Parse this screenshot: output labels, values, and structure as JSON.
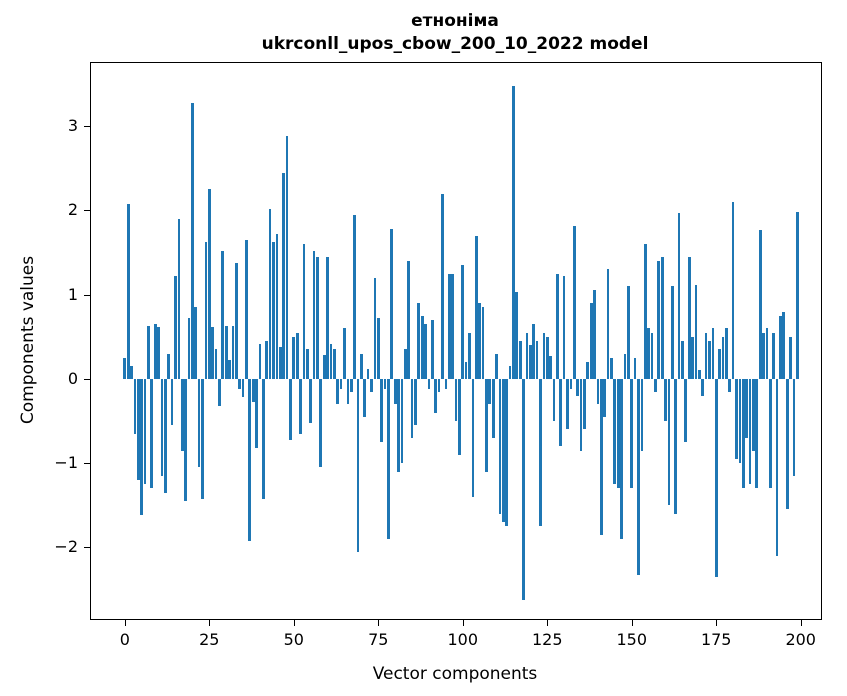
{
  "figure": {
    "title_line1": "етноніма",
    "title_line2": "ukrconll_upos_cbow_200_10_2022 model",
    "xlabel": "Vector components",
    "ylabel": "Components values"
  },
  "chart_data": {
    "type": "bar",
    "title": "етноніма\nukrconll_upos_cbow_200_10_2022 model",
    "xlabel": "Vector components",
    "ylabel": "Components values",
    "bar_color": "#1f77b4",
    "legend": null,
    "grid": false,
    "x_ticks": [
      0,
      25,
      50,
      75,
      100,
      125,
      150,
      175,
      200
    ],
    "y_ticks": [
      -2,
      -1,
      0,
      1,
      2,
      3
    ],
    "xlim": [
      -10,
      206
    ],
    "ylim": [
      -2.85,
      3.75
    ],
    "x_start": 0,
    "values": [
      0.25,
      2.08,
      0.15,
      -0.65,
      -1.2,
      -1.62,
      -1.25,
      0.63,
      -1.3,
      0.65,
      0.62,
      -1.15,
      -1.35,
      0.3,
      -0.55,
      1.22,
      1.9,
      -0.85,
      -1.45,
      0.72,
      3.27,
      0.85,
      -1.05,
      -1.42,
      1.63,
      2.25,
      0.62,
      0.35,
      -0.32,
      1.52,
      0.63,
      0.22,
      0.63,
      1.38,
      -0.12,
      -0.22,
      1.65,
      -1.93,
      -0.28,
      -0.82,
      0.42,
      -1.42,
      0.45,
      2.02,
      1.62,
      1.72,
      0.38,
      2.45,
      2.88,
      -0.72,
      0.5,
      0.55,
      -0.65,
      1.6,
      0.35,
      -0.52,
      1.52,
      1.45,
      -1.05,
      0.28,
      1.45,
      0.42,
      0.35,
      -0.3,
      -0.12,
      0.6,
      -0.3,
      -0.15,
      1.95,
      -2.05,
      0.3,
      -0.45,
      0.12,
      -0.15,
      1.2,
      0.72,
      -0.75,
      -0.12,
      -1.9,
      1.78,
      -0.3,
      -1.1,
      -1.0,
      0.35,
      1.4,
      -0.7,
      -0.55,
      0.9,
      0.75,
      0.65,
      -0.12,
      0.7,
      -0.4,
      -0.15,
      2.2,
      -0.12,
      1.25,
      1.25,
      -0.5,
      -0.9,
      1.35,
      0.2,
      0.55,
      -1.4,
      1.7,
      0.9,
      0.85,
      -1.1,
      -0.3,
      -0.7,
      0.3,
      -1.6,
      -1.7,
      -1.75,
      0.15,
      3.48,
      1.03,
      0.45,
      -2.62,
      0.55,
      0.4,
      0.65,
      0.45,
      -1.75,
      0.55,
      0.5,
      0.27,
      -0.5,
      1.25,
      -0.8,
      1.22,
      -0.6,
      -0.12,
      1.82,
      -0.2,
      -0.85,
      -0.6,
      0.2,
      0.9,
      1.05,
      -0.3,
      -1.85,
      -0.45,
      1.3,
      0.25,
      -1.25,
      -1.3,
      -1.9,
      0.3,
      1.1,
      -1.3,
      0.25,
      -2.33,
      -0.85,
      1.6,
      0.6,
      0.55,
      -0.15,
      1.4,
      1.45,
      -0.5,
      -1.5,
      1.1,
      -1.6,
      1.97,
      0.45,
      -0.75,
      1.45,
      0.5,
      1.12,
      0.1,
      -0.2,
      0.55,
      0.45,
      0.6,
      -2.35,
      0.35,
      0.5,
      0.6,
      -0.15,
      2.1,
      -0.95,
      -1.0,
      -1.3,
      -0.7,
      -1.25,
      -0.85,
      -1.3,
      1.77,
      0.55,
      0.6,
      -1.3,
      0.55,
      -2.1,
      0.75,
      0.8,
      -1.55,
      0.5,
      -1.15,
      1.98
    ]
  }
}
